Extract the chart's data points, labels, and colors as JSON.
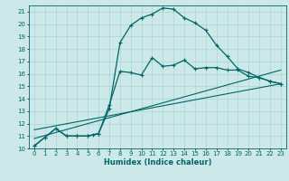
{
  "xlabel": "Humidex (Indice chaleur)",
  "bg_color": "#cce8e8",
  "line_color": "#006666",
  "grid_color": "#aad4d4",
  "xlim": [
    -0.5,
    23.5
  ],
  "ylim": [
    10,
    21.5
  ],
  "xticks": [
    0,
    1,
    2,
    3,
    4,
    5,
    6,
    7,
    8,
    9,
    10,
    11,
    12,
    13,
    14,
    15,
    16,
    17,
    18,
    19,
    20,
    21,
    22,
    23
  ],
  "yticks": [
    10,
    11,
    12,
    13,
    14,
    15,
    16,
    17,
    18,
    19,
    20,
    21
  ],
  "curve_smooth_x": [
    0,
    1,
    2,
    3,
    4,
    5,
    5.5,
    6,
    7,
    8,
    9,
    10,
    11,
    12,
    13,
    14,
    15,
    16,
    17,
    18,
    19,
    20,
    21,
    22,
    23
  ],
  "curve_smooth_y": [
    10.2,
    10.9,
    11.6,
    11.0,
    11.0,
    11.0,
    11.1,
    11.2,
    13.2,
    18.5,
    19.9,
    20.5,
    20.8,
    21.3,
    21.2,
    20.5,
    20.1,
    19.5,
    18.3,
    17.4,
    16.4,
    16.1,
    15.7,
    15.4,
    15.2
  ],
  "curve_jagged_x": [
    0,
    1,
    2,
    3,
    4,
    5,
    6,
    7,
    8,
    9,
    10,
    11,
    12,
    13,
    14,
    15,
    16,
    17,
    18,
    19,
    20,
    21,
    22,
    23
  ],
  "curve_jagged_y": [
    10.2,
    10.9,
    11.6,
    11.0,
    11.0,
    11.0,
    11.2,
    13.5,
    16.2,
    16.1,
    15.9,
    17.3,
    16.6,
    16.7,
    17.1,
    16.4,
    16.5,
    16.5,
    16.3,
    16.3,
    15.8,
    15.7,
    15.4,
    15.2
  ],
  "line1_x": [
    0,
    23
  ],
  "line1_y": [
    10.8,
    16.3
  ],
  "line2_x": [
    0,
    23
  ],
  "line2_y": [
    11.5,
    15.2
  ]
}
